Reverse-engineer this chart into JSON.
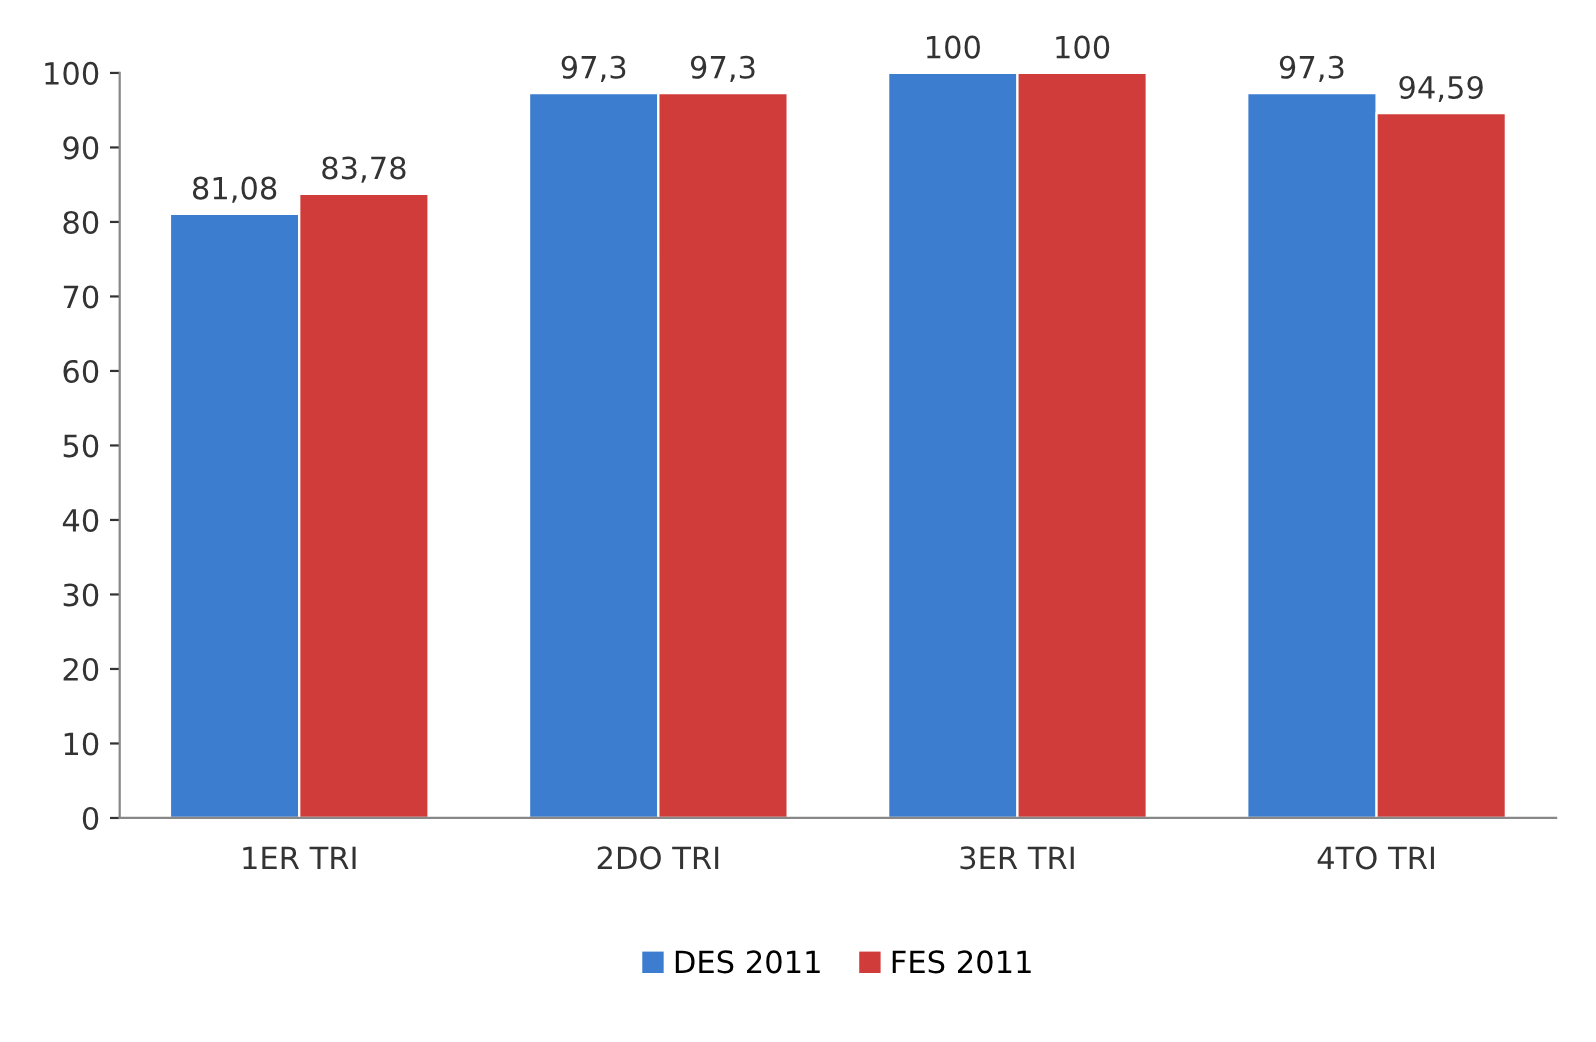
{
  "chart_data": {
    "type": "bar",
    "categories": [
      "1ER TRI",
      "2DO TRI",
      "3ER TRI",
      "4TO TRI"
    ],
    "series": [
      {
        "name": "DES 2011",
        "color": "#3c7dd0",
        "values": [
          81.08,
          97.3,
          100,
          97.3
        ],
        "value_labels": [
          "81,08",
          "97,3",
          "100",
          "97,3"
        ]
      },
      {
        "name": "FES 2011",
        "color": "#d03c3a",
        "values": [
          83.78,
          97.3,
          100,
          94.59
        ],
        "value_labels": [
          "83,78",
          "97,3",
          "100",
          "94,59"
        ]
      }
    ],
    "ylim": [
      0,
      100
    ],
    "yticks": [
      0,
      10,
      20,
      30,
      40,
      50,
      60,
      70,
      80,
      90,
      100
    ],
    "grid": false,
    "legend": "bottom"
  }
}
